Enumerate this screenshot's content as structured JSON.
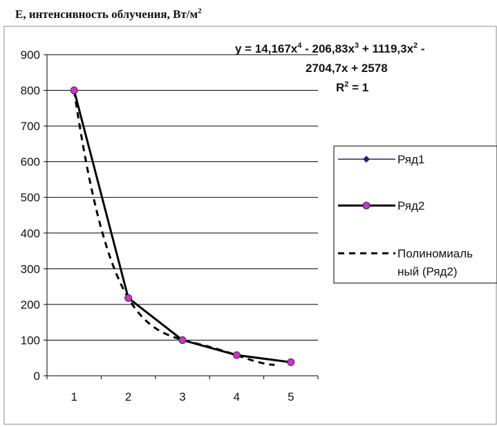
{
  "chart_data": {
    "type": "line",
    "title": "Е, интенсивность облучения, Вт/м",
    "title_sup": "2",
    "categories": [
      "1",
      "2",
      "3",
      "4",
      "5"
    ],
    "ylim": [
      0,
      900
    ],
    "yticks": [
      "0",
      "100",
      "200",
      "300",
      "400",
      "500",
      "600",
      "700",
      "800",
      "900"
    ],
    "grid": true,
    "legend_position": "right",
    "series": [
      {
        "name": "Ряд1",
        "values": [
          800,
          218,
          100,
          58,
          38
        ],
        "color": "#1a237e",
        "marker": "diamond"
      },
      {
        "name": "Ряд2",
        "values": [
          800,
          218,
          100,
          58,
          38
        ],
        "color": "#000000",
        "marker": "circle",
        "marker_color": "#cc33cc"
      }
    ],
    "trendline": {
      "name_lines": [
        "Полиномиаль",
        "ный (Ряд2)"
      ],
      "type": "polynomial",
      "coefficients": [
        14.167,
        -206.83,
        1119.3,
        -2704.7,
        2578
      ],
      "style": "dashed",
      "color": "#000000"
    },
    "equation": {
      "line1_parts": [
        "y = 14,167x",
        "4",
        " - 206,83x",
        "3",
        " + 1119,3x",
        "2",
        " -"
      ],
      "line2": "2704,7x + 2578",
      "r2_parts": [
        "R",
        "2",
        " = 1"
      ]
    }
  }
}
